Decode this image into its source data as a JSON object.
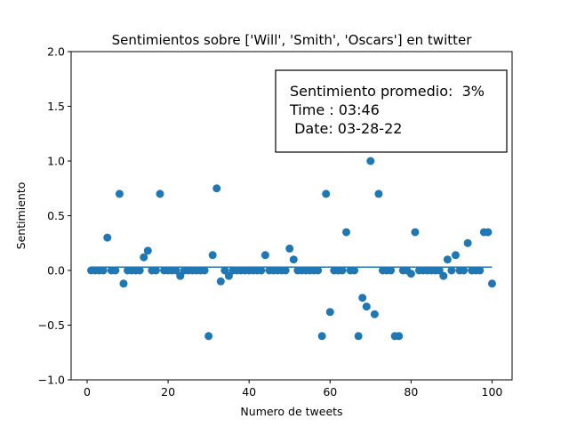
{
  "chart_data": {
    "type": "scatter",
    "title": "Sentimientos sobre ['Will', 'Smith', 'Oscars'] en twitter",
    "xlabel": "Numero de tweets",
    "ylabel": "Sentimiento",
    "xlim": [
      -3.95,
      104.95
    ],
    "ylim": [
      -1.0,
      2.0
    ],
    "xticks": [
      0,
      20,
      40,
      60,
      80,
      100
    ],
    "yticks": [
      -1.0,
      -0.5,
      0.0,
      0.5,
      1.0,
      1.5,
      2.0
    ],
    "xtick_labels": [
      "0",
      "20",
      "40",
      "60",
      "80",
      "100"
    ],
    "ytick_labels": [
      "−1.0",
      "−0.5",
      "0.0",
      "0.5",
      "1.0",
      "1.5",
      "2.0"
    ],
    "grid": false,
    "point_color": "#1f77b4",
    "mean_line": {
      "x": [
        1,
        100
      ],
      "y": [
        0.03,
        0.03
      ],
      "color": "#1f77b4"
    },
    "annotation": [
      "Sentimiento promedio:  3%",
      "Time : 03:46",
      " Date: 03-28-22"
    ],
    "points": [
      [
        1,
        0
      ],
      [
        2,
        0
      ],
      [
        3,
        0
      ],
      [
        4,
        0
      ],
      [
        5,
        0.3
      ],
      [
        6,
        0
      ],
      [
        7,
        0
      ],
      [
        8,
        0.7
      ],
      [
        9,
        -0.12
      ],
      [
        10,
        0
      ],
      [
        11,
        0
      ],
      [
        12,
        0
      ],
      [
        13,
        0
      ],
      [
        14,
        0.12
      ],
      [
        15,
        0.18
      ],
      [
        16,
        0
      ],
      [
        17,
        0
      ],
      [
        18,
        0.7
      ],
      [
        19,
        0
      ],
      [
        20,
        0
      ],
      [
        21,
        0
      ],
      [
        22,
        0
      ],
      [
        23,
        -0.05
      ],
      [
        24,
        0
      ],
      [
        25,
        0
      ],
      [
        26,
        0
      ],
      [
        27,
        0
      ],
      [
        28,
        0
      ],
      [
        29,
        0
      ],
      [
        30,
        -0.6
      ],
      [
        31,
        0.14
      ],
      [
        32,
        0.75
      ],
      [
        33,
        -0.1
      ],
      [
        34,
        0
      ],
      [
        35,
        -0.05
      ],
      [
        36,
        0
      ],
      [
        37,
        0
      ],
      [
        38,
        0
      ],
      [
        39,
        0
      ],
      [
        40,
        0
      ],
      [
        41,
        0
      ],
      [
        42,
        0
      ],
      [
        43,
        0
      ],
      [
        44,
        0.14
      ],
      [
        45,
        0
      ],
      [
        46,
        0
      ],
      [
        47,
        0
      ],
      [
        48,
        0
      ],
      [
        49,
        0
      ],
      [
        50,
        0.2
      ],
      [
        51,
        0.1
      ],
      [
        52,
        0
      ],
      [
        53,
        0
      ],
      [
        54,
        0
      ],
      [
        55,
        0
      ],
      [
        56,
        0
      ],
      [
        57,
        0
      ],
      [
        58,
        -0.6
      ],
      [
        59,
        0.7
      ],
      [
        60,
        -0.38
      ],
      [
        61,
        0
      ],
      [
        62,
        0
      ],
      [
        63,
        0
      ],
      [
        64,
        0.35
      ],
      [
        65,
        0
      ],
      [
        66,
        0
      ],
      [
        67,
        -0.6
      ],
      [
        68,
        -0.25
      ],
      [
        69,
        -0.33
      ],
      [
        70,
        1.0
      ],
      [
        71,
        -0.4
      ],
      [
        72,
        0.7
      ],
      [
        73,
        0
      ],
      [
        74,
        0
      ],
      [
        75,
        0
      ],
      [
        76,
        -0.6
      ],
      [
        77,
        -0.6
      ],
      [
        78,
        0
      ],
      [
        79,
        0
      ],
      [
        80,
        -0.03
      ],
      [
        81,
        0.35
      ],
      [
        82,
        0
      ],
      [
        83,
        0
      ],
      [
        84,
        0
      ],
      [
        85,
        0
      ],
      [
        86,
        0
      ],
      [
        87,
        0
      ],
      [
        88,
        -0.05
      ],
      [
        89,
        0.1
      ],
      [
        90,
        0
      ],
      [
        91,
        0.14
      ],
      [
        92,
        0
      ],
      [
        93,
        0
      ],
      [
        94,
        0.25
      ],
      [
        95,
        0
      ],
      [
        96,
        0
      ],
      [
        97,
        0
      ],
      [
        98,
        0.35
      ],
      [
        99,
        0.35
      ],
      [
        100,
        -0.12
      ]
    ]
  }
}
